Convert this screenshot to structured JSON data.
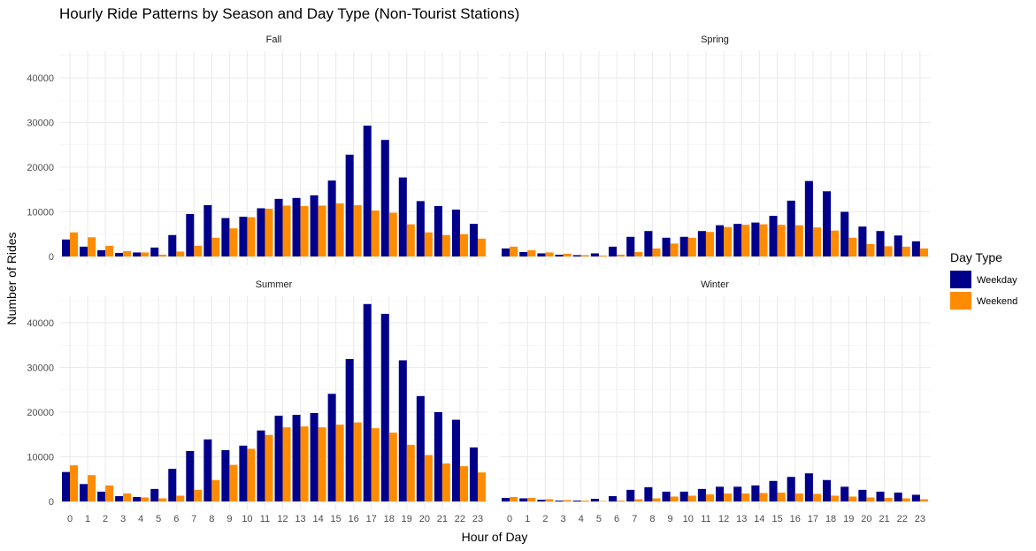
{
  "chart_data": {
    "type": "bar",
    "title": "Hourly Ride Patterns by Season and Day Type (Non-Tourist Stations)",
    "xlabel": "Hour of Day",
    "ylabel": "Number of Rides",
    "ylim": [
      0,
      46000
    ],
    "yticks": [
      0,
      10000,
      20000,
      30000,
      40000
    ],
    "categories": [
      "0",
      "1",
      "2",
      "3",
      "4",
      "5",
      "6",
      "7",
      "8",
      "9",
      "10",
      "11",
      "12",
      "13",
      "14",
      "15",
      "16",
      "17",
      "18",
      "19",
      "20",
      "21",
      "22",
      "23"
    ],
    "grid": true,
    "legend": {
      "title": "Day Type",
      "position": "right",
      "entries": [
        "Weekday",
        "Weekend"
      ]
    },
    "colors": {
      "Weekday": "#00008b",
      "Weekend": "#ff8c00"
    },
    "panels": [
      {
        "name": "Fall",
        "series": [
          {
            "name": "Weekday",
            "values": [
              3800,
              2200,
              1400,
              800,
              900,
              2000,
              4800,
              9500,
              11500,
              8600,
              8900,
              10800,
              12900,
              13100,
              13700,
              17000,
              22800,
              29300,
              26100,
              17700,
              12400,
              11300,
              10500,
              7300
            ]
          },
          {
            "name": "Weekend",
            "values": [
              5400,
              4300,
              2400,
              1200,
              900,
              400,
              1100,
              2400,
              4200,
              6300,
              8800,
              10700,
              11400,
              11300,
              11400,
              11900,
              11500,
              10300,
              9800,
              7200,
              5400,
              4800,
              5000,
              4000
            ]
          }
        ]
      },
      {
        "name": "Spring",
        "series": [
          {
            "name": "Weekday",
            "values": [
              1800,
              1000,
              700,
              400,
              300,
              700,
              2200,
              4400,
              5700,
              4200,
              4400,
              5700,
              7000,
              7300,
              7600,
              9100,
              12500,
              16900,
              14600,
              10000,
              6700,
              5700,
              4700,
              3400
            ]
          },
          {
            "name": "Weekend",
            "values": [
              2200,
              1400,
              900,
              600,
              300,
              200,
              400,
              1000,
              1800,
              2900,
              4200,
              5500,
              6600,
              7100,
              7200,
              7100,
              7000,
              6500,
              5800,
              4200,
              2800,
              2300,
              2200,
              1800
            ]
          }
        ]
      },
      {
        "name": "Summer",
        "series": [
          {
            "name": "Weekday",
            "values": [
              6600,
              3900,
              2200,
              1200,
              1000,
              2800,
              7300,
              11300,
              13900,
              11500,
              12500,
              15900,
              19200,
              19400,
              19800,
              24100,
              31900,
              44200,
              42000,
              31600,
              23600,
              20000,
              18300,
              12100
            ]
          },
          {
            "name": "Weekend",
            "values": [
              8100,
              5900,
              3600,
              1800,
              900,
              700,
              1300,
              2600,
              4800,
              8200,
              11800,
              14900,
              16600,
              16800,
              16600,
              17200,
              17700,
              16400,
              15400,
              12700,
              10400,
              8500,
              7900,
              6500
            ]
          }
        ]
      },
      {
        "name": "Winter",
        "series": [
          {
            "name": "Weekday",
            "values": [
              800,
              700,
              400,
              200,
              200,
              600,
              1200,
              2600,
              3200,
              2200,
              2200,
              2800,
              3300,
              3300,
              3600,
              4600,
              5500,
              6300,
              4800,
              3300,
              2600,
              2200,
              2000,
              1500
            ]
          },
          {
            "name": "Weekend",
            "values": [
              1000,
              800,
              500,
              300,
              200,
              100,
              200,
              500,
              700,
              1100,
              1300,
              1600,
              1800,
              1800,
              1900,
              2000,
              1800,
              1700,
              1300,
              1100,
              900,
              800,
              700,
              500
            ]
          }
        ]
      }
    ]
  }
}
